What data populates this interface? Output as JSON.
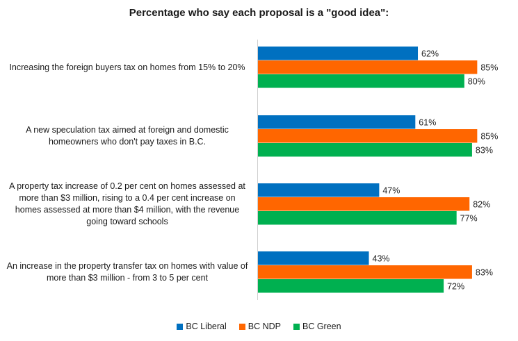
{
  "chart_data": {
    "type": "bar",
    "orientation": "horizontal",
    "title": "Percentage who say each proposal is a \"good idea\":",
    "categories": [
      "Increasing the foreign buyers tax on homes from 15% to 20%",
      "A new speculation tax aimed at foreign and domestic homeowners who don't pay taxes in B.C.",
      "A property tax increase of 0.2 per cent on homes assessed at more than $3 million, rising to a 0.4 per cent increase on homes assessed at more than $4 million, with the revenue going toward schools",
      "An increase in the property transfer tax on homes with value of more than $3 million - from 3 to 5 per cent"
    ],
    "series": [
      {
        "name": "BC Liberal",
        "color": "#0070C0",
        "values": [
          62,
          61,
          47,
          43
        ]
      },
      {
        "name": "BC NDP",
        "color": "#FF6600",
        "values": [
          85,
          85,
          82,
          83
        ]
      },
      {
        "name": "BC Green",
        "color": "#00B050",
        "values": [
          80,
          83,
          77,
          72
        ]
      }
    ],
    "value_format": "percent",
    "xlim": [
      0,
      100
    ],
    "grid": false,
    "legend": "bottom"
  }
}
